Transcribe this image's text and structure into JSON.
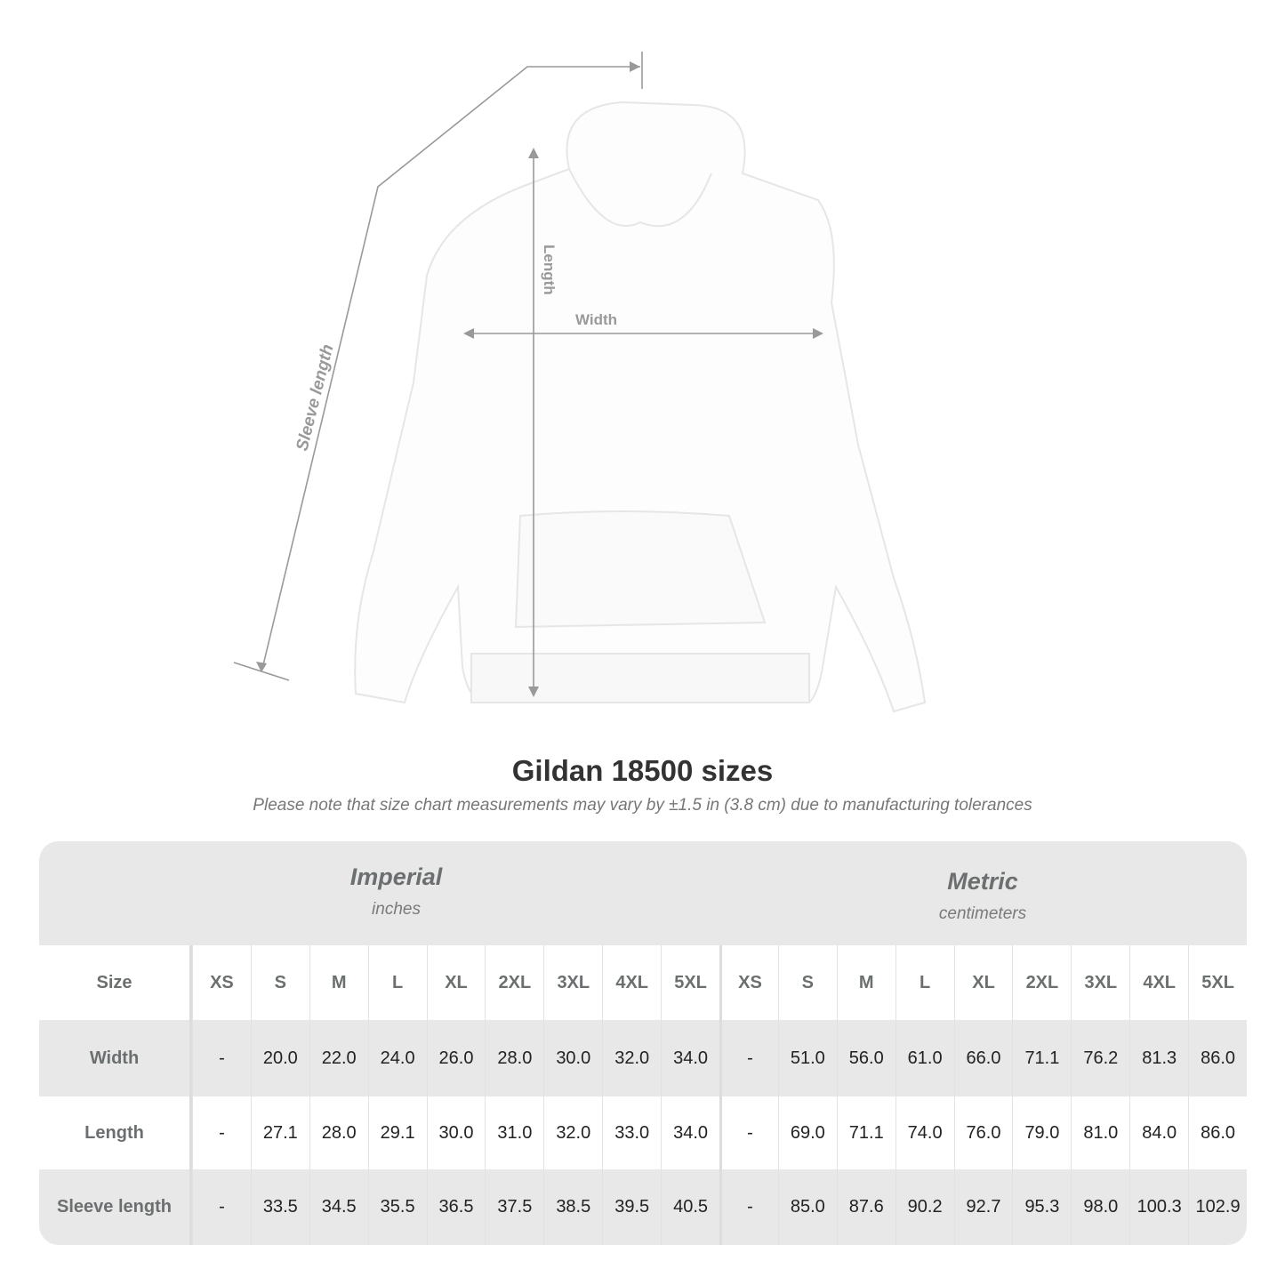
{
  "diagram": {
    "length_label": "Length",
    "width_label": "Width",
    "sleeve_label": "Sleeve length"
  },
  "title": "Gildan 18500 sizes",
  "note": "Please note that size chart measurements may vary by ±1.5 in (3.8 cm) due to manufacturing tolerances",
  "table": {
    "imperial": {
      "name": "Imperial",
      "unit": "inches"
    },
    "metric": {
      "name": "Metric",
      "unit": "centimeters"
    },
    "size_label": "Size",
    "sizes": [
      "XS",
      "S",
      "M",
      "L",
      "XL",
      "2XL",
      "3XL",
      "4XL",
      "5XL"
    ],
    "rows": [
      {
        "label": "Width",
        "imperial": [
          "-",
          "20.0",
          "22.0",
          "24.0",
          "26.0",
          "28.0",
          "30.0",
          "32.0",
          "34.0"
        ],
        "metric": [
          "-",
          "51.0",
          "56.0",
          "61.0",
          "66.0",
          "71.1",
          "76.2",
          "81.3",
          "86.0"
        ]
      },
      {
        "label": "Length",
        "imperial": [
          "-",
          "27.1",
          "28.0",
          "29.1",
          "30.0",
          "31.0",
          "32.0",
          "33.0",
          "34.0"
        ],
        "metric": [
          "-",
          "69.0",
          "71.1",
          "74.0",
          "76.0",
          "79.0",
          "81.0",
          "84.0",
          "86.0"
        ]
      },
      {
        "label": "Sleeve length",
        "imperial": [
          "-",
          "33.5",
          "34.5",
          "35.5",
          "36.5",
          "37.5",
          "38.5",
          "39.5",
          "40.5"
        ],
        "metric": [
          "-",
          "85.0",
          "87.6",
          "90.2",
          "92.7",
          "95.3",
          "98.0",
          "100.3",
          "102.9"
        ]
      }
    ]
  }
}
